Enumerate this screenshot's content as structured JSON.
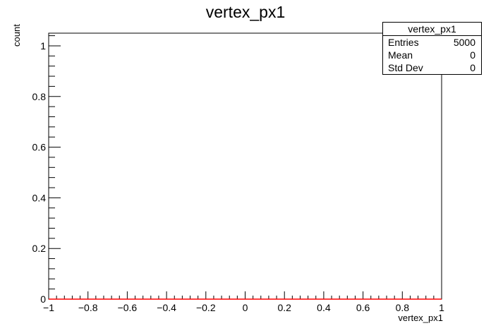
{
  "chart_data": {
    "type": "histogram",
    "title": "vertex_px1",
    "xlabel": "vertex_px1",
    "ylabel": "count",
    "xlim": [
      -1,
      1
    ],
    "ylim": [
      0,
      1.05
    ],
    "x_ticks": [
      "−1",
      "−0.8",
      "−0.6",
      "−0.4",
      "−0.2",
      "0",
      "0.2",
      "0.4",
      "0.6",
      "0.8",
      "1"
    ],
    "y_ticks": [
      "0",
      "0.2",
      "0.4",
      "0.6",
      "0.8",
      "1"
    ],
    "x_tick_values": [
      -1,
      -0.8,
      -0.6,
      -0.4,
      -0.2,
      0,
      0.2,
      0.4,
      0.6,
      0.8,
      1
    ],
    "y_tick_values": [
      0,
      0.2,
      0.4,
      0.6,
      0.8,
      1
    ],
    "series": [
      {
        "x": [
          -1,
          1
        ],
        "values": [
          0,
          0
        ],
        "color": "#ff0000"
      }
    ],
    "stats_box": {
      "title": "vertex_px1",
      "rows": [
        {
          "label": "Entries",
          "value": "5000"
        },
        {
          "label": "Mean",
          "value": "0"
        },
        {
          "label": "Std Dev",
          "value": "0"
        }
      ]
    }
  }
}
